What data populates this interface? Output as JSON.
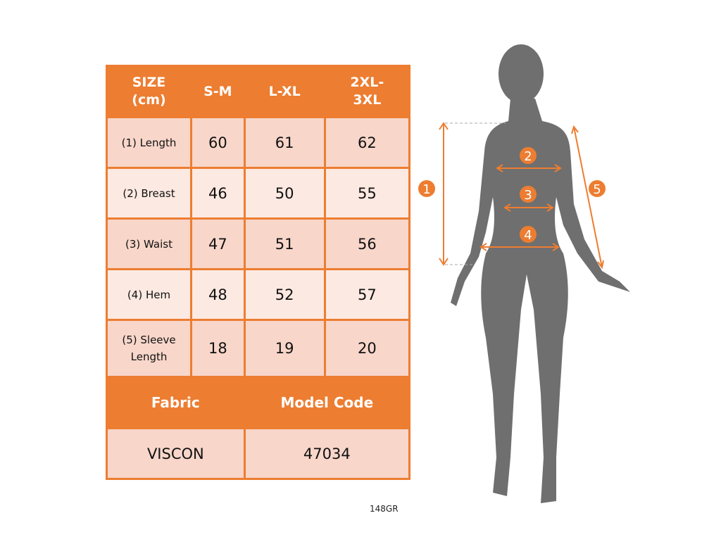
{
  "table": {
    "header": [
      "SIZE\n(cm)",
      "S-M",
      "L-XL",
      "2XL-\n3XL"
    ],
    "header_lines": [
      [
        "SIZE",
        "(cm)"
      ],
      [
        "S-M"
      ],
      [
        "L-XL"
      ],
      [
        "2XL-",
        "3XL"
      ]
    ],
    "rows": [
      {
        "label": "(1) Length",
        "values": [
          "60",
          "61",
          "62"
        ]
      },
      {
        "label": "(2) Breast",
        "values": [
          "46",
          "50",
          "55"
        ]
      },
      {
        "label": "(3) Waist",
        "values": [
          "47",
          "51",
          "56"
        ]
      },
      {
        "label": "(4) Hem",
        "values": [
          "48",
          "52",
          "57"
        ]
      },
      {
        "label_lines": [
          "(5) Sleeve",
          "Length"
        ],
        "values": [
          "18",
          "19",
          "20"
        ]
      }
    ],
    "fabric_label": "Fabric",
    "model_code_label": "Model Code",
    "fabric_value": "VISCON",
    "model_code_value": "47034"
  },
  "code": "148GR",
  "figure": {
    "markers": [
      "1",
      "2",
      "3",
      "4",
      "5"
    ]
  },
  "colors": {
    "accent": "#ed7d31",
    "row_dark": "#f8d6ca",
    "row_light": "#fce9e2",
    "silhouette": "#6f6f6f"
  }
}
